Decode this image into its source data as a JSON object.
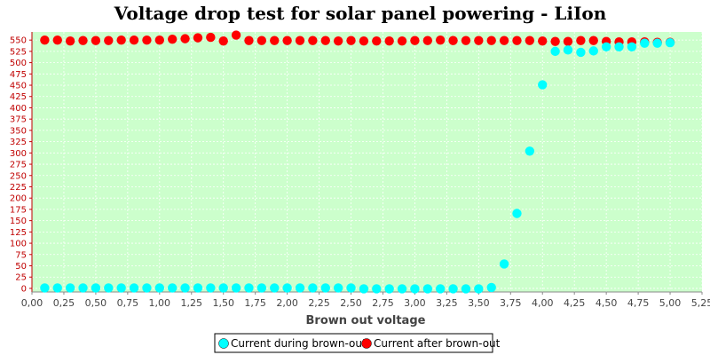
{
  "chart_data": {
    "type": "scatter",
    "title": "Voltage drop test for solar panel powering -  LiIon",
    "xlabel": "Brown out voltage",
    "ylabel": "",
    "xlim": [
      0,
      5.25
    ],
    "ylim": [
      -8,
      568
    ],
    "x_ticks": [
      "0,00",
      "0,25",
      "0,50",
      "0,75",
      "1,00",
      "1,25",
      "1,50",
      "1,75",
      "2,00",
      "2,25",
      "2,50",
      "2,75",
      "3,00",
      "3,25",
      "3,50",
      "3,75",
      "4,00",
      "4,25",
      "4,50",
      "4,75",
      "5,00",
      "5,25"
    ],
    "y_ticks": [
      "0",
      "25",
      "50",
      "75",
      "100",
      "125",
      "150",
      "175",
      "200",
      "225",
      "250",
      "275",
      "300",
      "325",
      "350",
      "375",
      "400",
      "425",
      "450",
      "475",
      "500",
      "525",
      "550"
    ],
    "grid": true,
    "legend_position": "bottom",
    "background": "#ccffcc",
    "series": [
      {
        "name": "Current during brown-out",
        "color": "#00ffff",
        "points": [
          [
            0.1,
            1
          ],
          [
            0.2,
            1
          ],
          [
            0.3,
            1
          ],
          [
            0.4,
            1
          ],
          [
            0.5,
            1
          ],
          [
            0.6,
            1
          ],
          [
            0.7,
            1
          ],
          [
            0.8,
            1
          ],
          [
            0.9,
            1
          ],
          [
            1.0,
            1
          ],
          [
            1.1,
            1
          ],
          [
            1.2,
            1
          ],
          [
            1.3,
            1
          ],
          [
            1.4,
            1
          ],
          [
            1.5,
            1
          ],
          [
            1.6,
            1
          ],
          [
            1.7,
            1
          ],
          [
            1.8,
            1
          ],
          [
            1.9,
            1
          ],
          [
            2.0,
            1
          ],
          [
            2.1,
            1
          ],
          [
            2.2,
            1
          ],
          [
            2.3,
            1
          ],
          [
            2.4,
            1
          ],
          [
            2.5,
            1
          ],
          [
            2.6,
            -1
          ],
          [
            2.7,
            -1
          ],
          [
            2.8,
            -1
          ],
          [
            2.9,
            -1
          ],
          [
            3.0,
            -1
          ],
          [
            3.1,
            -1
          ],
          [
            3.2,
            -1
          ],
          [
            3.3,
            -1
          ],
          [
            3.4,
            -1
          ],
          [
            3.5,
            -1
          ],
          [
            3.6,
            2
          ],
          [
            3.7,
            54
          ],
          [
            3.8,
            166
          ],
          [
            3.9,
            304
          ],
          [
            4.0,
            451
          ],
          [
            4.1,
            525
          ],
          [
            4.2,
            528
          ],
          [
            4.3,
            523
          ],
          [
            4.4,
            526
          ],
          [
            4.5,
            535
          ],
          [
            4.6,
            535
          ],
          [
            4.7,
            535
          ],
          [
            4.8,
            543
          ],
          [
            4.9,
            543
          ],
          [
            5.0,
            544
          ]
        ]
      },
      {
        "name": "Current after brown-out",
        "color": "#ff0000",
        "points": [
          [
            0.1,
            550
          ],
          [
            0.2,
            550
          ],
          [
            0.3,
            548
          ],
          [
            0.4,
            549
          ],
          [
            0.5,
            549
          ],
          [
            0.6,
            549
          ],
          [
            0.7,
            550
          ],
          [
            0.8,
            550
          ],
          [
            0.9,
            550
          ],
          [
            1.0,
            550
          ],
          [
            1.1,
            552
          ],
          [
            1.2,
            553
          ],
          [
            1.3,
            555
          ],
          [
            1.4,
            556
          ],
          [
            1.5,
            548
          ],
          [
            1.6,
            561
          ],
          [
            1.7,
            549
          ],
          [
            1.8,
            549
          ],
          [
            1.9,
            549
          ],
          [
            2.0,
            549
          ],
          [
            2.1,
            549
          ],
          [
            2.2,
            549
          ],
          [
            2.3,
            549
          ],
          [
            2.4,
            548
          ],
          [
            2.5,
            549
          ],
          [
            2.6,
            548
          ],
          [
            2.7,
            548
          ],
          [
            2.8,
            548
          ],
          [
            2.9,
            548
          ],
          [
            3.0,
            549
          ],
          [
            3.1,
            549
          ],
          [
            3.2,
            550
          ],
          [
            3.3,
            549
          ],
          [
            3.4,
            549
          ],
          [
            3.5,
            549
          ],
          [
            3.6,
            549
          ],
          [
            3.7,
            549
          ],
          [
            3.8,
            549
          ],
          [
            3.9,
            549
          ],
          [
            4.0,
            548
          ],
          [
            4.1,
            547
          ],
          [
            4.2,
            547
          ],
          [
            4.3,
            549
          ],
          [
            4.4,
            549
          ],
          [
            4.5,
            547
          ],
          [
            4.6,
            546
          ],
          [
            4.7,
            546
          ],
          [
            4.8,
            546
          ],
          [
            4.9,
            545
          ],
          [
            5.0,
            545
          ]
        ]
      }
    ]
  }
}
